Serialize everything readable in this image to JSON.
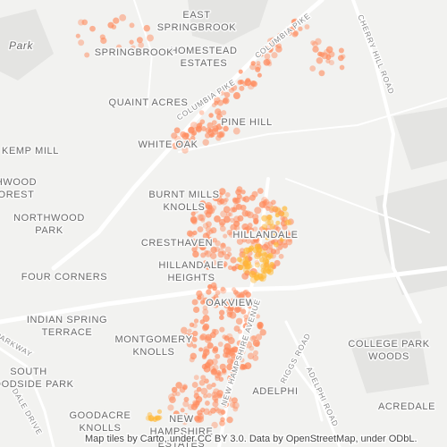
{
  "places": [
    {
      "lines": [
        "EAST",
        "SPRINGBROOK"
      ]
    },
    {
      "lines": [
        "HOMESTEAD",
        "ESTATES"
      ]
    },
    {
      "lines": [
        "SPRINGBROOK"
      ]
    },
    {
      "lines": [
        "QUAINT ACRES"
      ]
    },
    {
      "lines": [
        "PINE HILL"
      ]
    },
    {
      "lines": [
        "WHITE OAK"
      ]
    },
    {
      "lines": [
        "KEMP MILL"
      ]
    },
    {
      "lines": [
        "HWOOD",
        "OREST"
      ]
    },
    {
      "lines": [
        "NORTHWOOD",
        "PARK"
      ]
    },
    {
      "lines": [
        "BURNT MILLS",
        "KNOLLS"
      ]
    },
    {
      "lines": [
        "CRESTHAVEN"
      ]
    },
    {
      "lines": [
        "HILLANDALE"
      ]
    },
    {
      "lines": [
        "HILLANDALE",
        "HEIGHTS"
      ]
    },
    {
      "lines": [
        "FOUR CORNERS"
      ]
    },
    {
      "lines": [
        "INDIAN SPRING",
        "TERRACE"
      ]
    },
    {
      "lines": [
        "OAKVIEW"
      ]
    },
    {
      "lines": [
        "MONTGOMERY",
        "KNOLLS"
      ]
    },
    {
      "lines": [
        "COLLEGE PARK",
        "WOODS"
      ]
    },
    {
      "lines": [
        "SOUTH",
        "WOODSIDE PARK"
      ]
    },
    {
      "lines": [
        "ADELPHI"
      ]
    },
    {
      "lines": [
        "ACREDALE"
      ]
    },
    {
      "lines": [
        "GOODACRE",
        "KNOLLS"
      ]
    },
    {
      "lines": [
        "NEW",
        "HAMPSHIRE",
        "ESTATES"
      ]
    }
  ],
  "roads": [
    "COLUMBIA PIKE",
    "COLUMBIA PIKE",
    "CHERRY HILL ROAD",
    "NEW HAMPSHIRE AVENUE",
    "RIGGS ROAD",
    "ADELPHI ROAD",
    "PARKWAY",
    "DALE DRIVE"
  ],
  "park": "Park",
  "attribution": "Map tiles by Carto, under CC BY 3.0. Data by OpenStreetMap, under ODbL."
}
